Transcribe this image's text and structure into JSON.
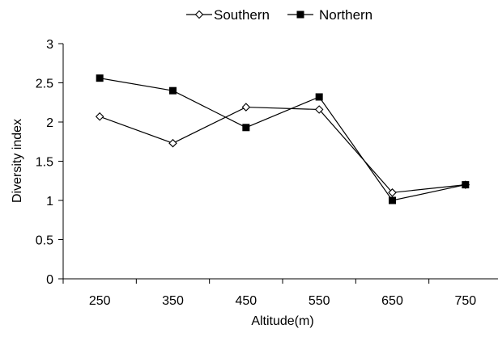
{
  "chart_data": {
    "type": "line",
    "xlabel": "Altitude(m)",
    "ylabel": "Diversity index",
    "categories": [
      "250",
      "350",
      "450",
      "550",
      "650",
      "750"
    ],
    "ylim": [
      0,
      3
    ],
    "yticks": [
      "0",
      "0.5",
      "1",
      "1.5",
      "2",
      "2.5",
      "3"
    ],
    "grid": false,
    "legend_position": "top",
    "series": [
      {
        "name": "Southern",
        "marker": "open-diamond",
        "color": "#000000",
        "values": [
          2.07,
          1.73,
          2.19,
          2.16,
          1.1,
          1.2
        ]
      },
      {
        "name": "Northern",
        "marker": "filled-square",
        "color": "#000000",
        "values": [
          2.56,
          2.4,
          1.93,
          2.32,
          1.0,
          1.2
        ]
      }
    ]
  }
}
